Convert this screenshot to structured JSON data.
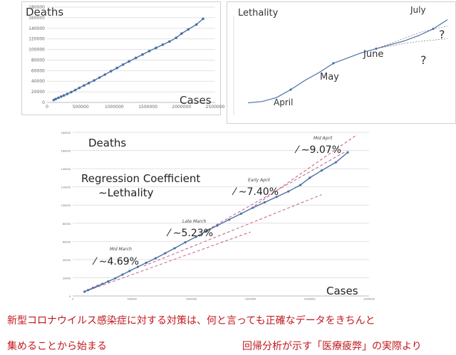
{
  "chart_data": [
    {
      "type": "line",
      "title": "Deaths",
      "xlabel": "Cases",
      "ylabel": "Deaths",
      "xlim": [
        0,
        2500000
      ],
      "ylim": [
        0,
        180000
      ],
      "grid": true,
      "x_ticks": [
        0,
        500000,
        1000000,
        1500000,
        2000000,
        2500000
      ],
      "x_tick_labels": [
        "0",
        "500000",
        "1000000",
        "1500000",
        "2000000",
        "2500000"
      ],
      "y_ticks": [
        0,
        20000,
        40000,
        60000,
        80000,
        100000,
        120000,
        140000,
        160000,
        180000
      ],
      "y_tick_labels": [
        "0",
        "20000",
        "40000",
        "60000",
        "80000",
        "100000",
        "120000",
        "140000",
        "160000",
        "180000"
      ],
      "series": [
        {
          "color": "#4a6fa5",
          "x": [
            100000,
            130000,
            170000,
            210000,
            250000,
            300000,
            360000,
            420000,
            480000,
            550000,
            620000,
            700000,
            780000,
            860000,
            950000,
            1040000,
            1130000,
            1220000,
            1320000,
            1420000,
            1520000,
            1620000,
            1720000,
            1820000,
            1920000,
            2000000,
            2100000,
            2220000,
            2320000
          ],
          "y": [
            4700,
            6500,
            8800,
            11000,
            13200,
            16000,
            19500,
            23500,
            27500,
            32000,
            36500,
            41500,
            47000,
            52500,
            59000,
            65000,
            71500,
            77500,
            84000,
            90500,
            97000,
            103000,
            109000,
            115000,
            122000,
            130000,
            138000,
            147000,
            158000
          ]
        }
      ]
    },
    {
      "type": "line",
      "title": "Lethality",
      "grid": false,
      "annotations": [
        "April",
        "May",
        "June",
        "July",
        "?",
        "?"
      ],
      "series": [
        {
          "color": "#4a6fa5",
          "x": [
            0,
            1,
            2,
            3,
            4,
            5,
            6,
            7,
            8,
            9,
            10,
            11,
            12,
            13,
            14
          ],
          "y": [
            2.9,
            3.0,
            3.3,
            3.9,
            4.6,
            5.2,
            5.9,
            6.3,
            6.7,
            7.0,
            7.3,
            7.6,
            8.0,
            8.5,
            9.2
          ]
        },
        {
          "style": "dotted",
          "x": [
            9,
            10,
            11,
            12,
            13,
            14
          ],
          "y": [
            7.0,
            7.4,
            7.8,
            8.2,
            8.5,
            8.7
          ]
        },
        {
          "style": "dotted",
          "x": [
            9,
            10,
            11,
            12,
            13,
            14
          ],
          "y": [
            7.0,
            7.2,
            7.4,
            7.55,
            7.65,
            7.75
          ]
        }
      ]
    },
    {
      "type": "line",
      "title": "Deaths",
      "subtitle": "Regression Coefficient ∼Lethality",
      "xlabel": "Cases",
      "ylabel": "Deaths",
      "xlim": [
        0,
        2500000
      ],
      "ylim": [
        0,
        180000
      ],
      "grid": true,
      "x_ticks": [
        0,
        500000,
        1000000,
        1500000,
        2000000,
        2500000
      ],
      "x_tick_labels": [
        "0",
        "500000",
        "1000000",
        "1500000",
        "2000000",
        "2500000"
      ],
      "y_ticks": [
        0,
        20000,
        40000,
        60000,
        80000,
        100000,
        120000,
        140000,
        160000,
        180000
      ],
      "y_tick_labels": [
        "0",
        "20000",
        "40000",
        "60000",
        "80000",
        "100000",
        "120000",
        "140000",
        "160000",
        "180000"
      ],
      "series": [
        {
          "color": "#4a6fa5",
          "x": [
            100000,
            130000,
            170000,
            210000,
            250000,
            300000,
            360000,
            420000,
            480000,
            550000,
            620000,
            700000,
            780000,
            860000,
            950000,
            1040000,
            1130000,
            1220000,
            1320000,
            1420000,
            1520000,
            1620000,
            1720000,
            1820000,
            1920000,
            2000000,
            2100000,
            2220000,
            2320000
          ],
          "y": [
            4700,
            6500,
            8800,
            11000,
            13200,
            16000,
            19500,
            23500,
            27500,
            32000,
            36500,
            41500,
            47000,
            52500,
            59000,
            65000,
            71500,
            77500,
            84000,
            90500,
            97000,
            103000,
            109000,
            115000,
            122000,
            130000,
            138000,
            147000,
            158000
          ]
        }
      ],
      "regression_lines": [
        {
          "slope_label": "∼4.69%",
          "period": "Mid March",
          "x": [
            100000,
            1500000
          ],
          "y": [
            4700,
            70350
          ]
        },
        {
          "slope_label": "∼5.23%",
          "period": "Late March",
          "x": [
            600000,
            2100000
          ],
          "y": [
            33000,
            111450
          ]
        },
        {
          "slope_label": "∼7.40%",
          "period": "Early April",
          "x": [
            1100000,
            2300000
          ],
          "y": [
            70000,
            158800
          ]
        },
        {
          "slope_label": "∼9.07%",
          "period": "Mid April",
          "x": [
            1500000,
            2400000
          ],
          "y": [
            96000,
            177630
          ]
        }
      ]
    }
  ],
  "captions": {
    "line1": "新型コロナウイルス感染症に対する対策は、何と言っても正確なデータをきちんと",
    "line2": "集めることから始まる",
    "line3": "回帰分析が示す「医療疲弊」の実際より"
  }
}
